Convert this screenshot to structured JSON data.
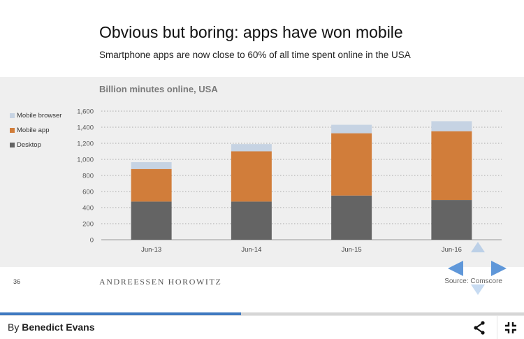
{
  "slide": {
    "title": "Obvious but boring: apps have won mobile",
    "subtitle": "Smartphone apps are now close to 60% of all time spent online in the USA",
    "number": "36",
    "logo_text": "ANDREESSEN HOROWITZ",
    "source": "Source: Comscore"
  },
  "legend": [
    {
      "label": "Mobile browser",
      "color": "#c6d3e3"
    },
    {
      "label": "Mobile app",
      "color": "#d17d3a"
    },
    {
      "label": "Desktop",
      "color": "#646464"
    }
  ],
  "chart_data": {
    "type": "bar",
    "stacked": true,
    "title": "Billion minutes online, USA",
    "categories": [
      "Jun-13",
      "Jun-14",
      "Jun-15",
      "Jun-16"
    ],
    "series": [
      {
        "name": "Desktop",
        "color": "#646464",
        "values": [
          475,
          475,
          550,
          495
        ]
      },
      {
        "name": "Mobile app",
        "color": "#d17d3a",
        "values": [
          405,
          625,
          775,
          855
        ]
      },
      {
        "name": "Mobile browser",
        "color": "#c6d3e3",
        "values": [
          85,
          90,
          105,
          125
        ]
      }
    ],
    "ylim": [
      0,
      1600
    ],
    "yticks": [
      "0",
      "200",
      "400",
      "600",
      "800",
      "1,000",
      "1,200",
      "1,400",
      "1,600"
    ],
    "grid": true,
    "legend_position": "left"
  },
  "navigation": {
    "up_icon": "arrow-up-icon",
    "down_icon": "arrow-down-icon",
    "left_icon": "arrow-left-icon",
    "right_icon": "arrow-right-icon",
    "accent": "#5f97d9"
  },
  "progress": {
    "fraction": 0.46,
    "color": "#3f79c0"
  },
  "bottom_bar": {
    "by_label": "By",
    "author": "Benedict Evans",
    "share_icon": "share-icon",
    "fullscreen_icon": "fullscreen-icon"
  }
}
